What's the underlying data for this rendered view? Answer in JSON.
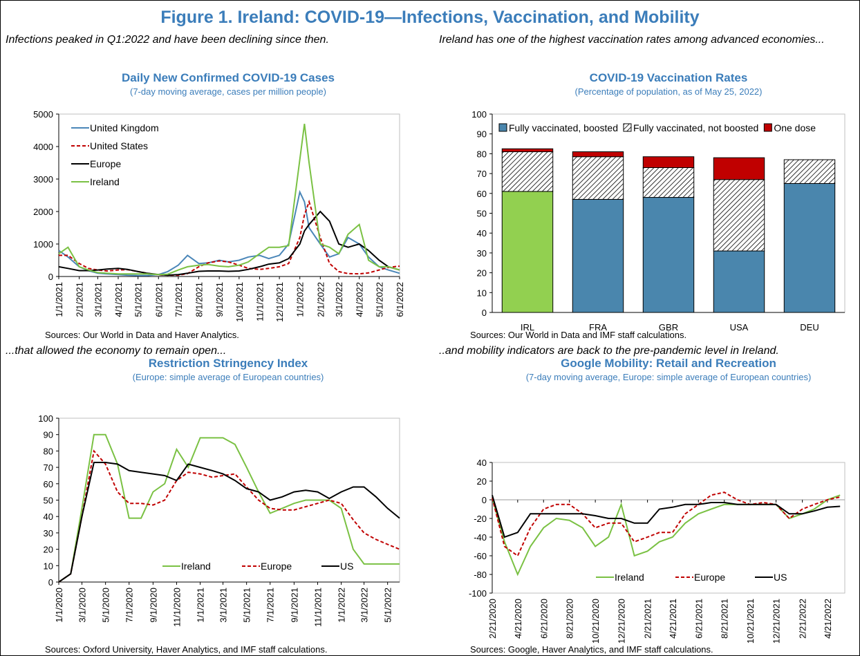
{
  "title": "Figure 1. Ireland: COVID-19—Infections, Vaccination, and Mobility",
  "chart_data": [
    {
      "type": "line",
      "caption": "Infections peaked in Q1:2022 and have been declining since then.",
      "title": "Daily New Confirmed COVID-19 Cases",
      "subtitle": "(7-day moving average, cases per million people)",
      "source": "Sources: Our World in Data and Haver Analytics.",
      "x": [
        "1/1/2021",
        "1/15/2021",
        "2/1/2021",
        "2/15/2021",
        "3/1/2021",
        "3/15/2021",
        "4/1/2021",
        "4/15/2021",
        "5/1/2021",
        "5/15/2021",
        "6/1/2021",
        "6/15/2021",
        "7/1/2021",
        "7/15/2021",
        "8/1/2021",
        "8/15/2021",
        "9/1/2021",
        "9/15/2021",
        "10/1/2021",
        "10/15/2021",
        "11/1/2021",
        "11/15/2021",
        "12/1/2021",
        "12/15/2021",
        "1/1/2022",
        "1/8/2022",
        "1/15/2022",
        "2/1/2022",
        "2/15/2022",
        "3/1/2022",
        "3/15/2022",
        "4/1/2022",
        "4/15/2022",
        "5/1/2022",
        "5/15/2022",
        "6/1/2022"
      ],
      "xlim": [
        "1/1/2021",
        "6/1/2022"
      ],
      "xticks": [
        "1/1/2021",
        "2/1/2021",
        "3/1/2021",
        "4/1/2021",
        "5/1/2021",
        "6/1/2021",
        "7/1/2021",
        "8/1/2021",
        "9/1/2021",
        "10/1/2021",
        "11/1/2021",
        "12/1/2021",
        "1/1/2022",
        "2/1/2022",
        "3/1/2022",
        "4/1/2022",
        "5/1/2022",
        "6/1/2022"
      ],
      "ylim": [
        0,
        5000
      ],
      "yticks": [
        0,
        1000,
        2000,
        3000,
        4000,
        5000
      ],
      "legend": "upper left",
      "series": [
        {
          "name": "United Kingdom",
          "color": "#4a86b8",
          "values": [
            800,
            600,
            300,
            180,
            100,
            80,
            60,
            40,
            30,
            30,
            60,
            150,
            350,
            650,
            400,
            420,
            500,
            450,
            500,
            600,
            650,
            550,
            650,
            1000,
            2600,
            2300,
            1500,
            1000,
            600,
            700,
            1200,
            1000,
            600,
            300,
            200,
            100
          ]
        },
        {
          "name": "United States",
          "color": "#c00000",
          "dash": true,
          "values": [
            650,
            650,
            400,
            250,
            200,
            170,
            200,
            210,
            150,
            100,
            50,
            40,
            40,
            90,
            300,
            420,
            480,
            450,
            350,
            250,
            220,
            250,
            300,
            400,
            1200,
            1900,
            2300,
            1200,
            400,
            150,
            90,
            80,
            110,
            200,
            280,
            320
          ]
        },
        {
          "name": "Europe",
          "color": "#000000",
          "values": [
            300,
            250,
            180,
            180,
            200,
            230,
            250,
            220,
            150,
            100,
            60,
            40,
            60,
            100,
            160,
            170,
            170,
            160,
            170,
            220,
            300,
            380,
            420,
            550,
            1000,
            1400,
            1600,
            2000,
            1700,
            1000,
            900,
            1000,
            800,
            500,
            300,
            200
          ]
        },
        {
          "name": "Ireland",
          "color": "#7ac143",
          "values": [
            700,
            900,
            300,
            200,
            120,
            100,
            80,
            80,
            80,
            80,
            60,
            70,
            200,
            300,
            350,
            370,
            320,
            300,
            350,
            450,
            700,
            900,
            900,
            950,
            3600,
            4700,
            3500,
            1000,
            900,
            700,
            1300,
            1600,
            500,
            300,
            300,
            200
          ]
        }
      ]
    },
    {
      "type": "stacked_bar",
      "caption": "Ireland has one of the highest vaccination rates among advanced economies...",
      "title": "COVID-19 Vaccination Rates",
      "subtitle": "(Percentage of population, as of May 25, 2022)",
      "source": "Sources: Our World in Data and IMF staff calculations.",
      "categories": [
        "IRL",
        "FRA",
        "GBR",
        "USA",
        "DEU"
      ],
      "ylim": [
        0,
        100
      ],
      "yticks": [
        0,
        10,
        20,
        30,
        40,
        50,
        60,
        70,
        80,
        90,
        100
      ],
      "legend": "upper center",
      "series": [
        {
          "name": "Fully vaccinated, boosted",
          "color": "#4a86ad",
          "colors": [
            "#92d050",
            "#4a86ad",
            "#4a86ad",
            "#4a86ad",
            "#4a86ad"
          ],
          "values": [
            61,
            57,
            58,
            31,
            65
          ]
        },
        {
          "name": "Fully vaccinated, not boosted",
          "color": "#000000",
          "hatch": true,
          "values": [
            20,
            21.5,
            15,
            36,
            12
          ]
        },
        {
          "name": "One dose",
          "color": "#c00000",
          "values": [
            1.5,
            2.5,
            5.5,
            11,
            0
          ]
        }
      ]
    },
    {
      "type": "line",
      "caption": "...that allowed the economy to remain open...",
      "title": "Restriction Stringency Index",
      "subtitle": "(Europe: simple average of European countries)",
      "source": "Sources: Oxford University, Haver Analytics, and IMF staff calculations.",
      "x": [
        "1/1/2020",
        "2/1/2020",
        "3/1/2020",
        "4/1/2020",
        "5/1/2020",
        "6/1/2020",
        "7/1/2020",
        "8/1/2020",
        "9/1/2020",
        "10/1/2020",
        "11/1/2020",
        "12/1/2020",
        "1/1/2021",
        "2/1/2021",
        "3/1/2021",
        "4/1/2021",
        "5/1/2021",
        "6/1/2021",
        "7/1/2021",
        "8/1/2021",
        "9/1/2021",
        "10/1/2021",
        "11/1/2021",
        "12/1/2021",
        "1/1/2022",
        "2/1/2022",
        "3/1/2022",
        "4/1/2022",
        "5/1/2022",
        "6/1/2022"
      ],
      "xlim": [
        "1/1/2020",
        "6/1/2022"
      ],
      "xticks": [
        "1/1/2020",
        "3/1/2020",
        "5/1/2020",
        "7/1/2020",
        "9/1/2020",
        "11/1/2020",
        "1/1/2021",
        "3/1/2021",
        "5/1/2021",
        "7/1/2021",
        "9/1/2021",
        "11/1/2021",
        "1/1/2022",
        "3/1/2022",
        "5/1/2022"
      ],
      "ylim": [
        0,
        100
      ],
      "yticks": [
        0,
        10,
        20,
        30,
        40,
        50,
        60,
        70,
        80,
        90,
        100
      ],
      "legend": "lower center",
      "series": [
        {
          "name": "Ireland",
          "color": "#7ac143",
          "values": [
            0,
            5,
            45,
            90,
            90,
            72,
            39,
            39,
            55,
            60,
            81,
            70,
            88,
            88,
            88,
            84,
            70,
            55,
            42,
            45,
            48,
            50,
            50,
            50,
            45,
            20,
            11,
            11,
            11,
            11
          ]
        },
        {
          "name": "Europe",
          "color": "#c00000",
          "dash": true,
          "values": [
            0,
            5,
            40,
            80,
            72,
            55,
            48,
            48,
            47,
            50,
            62,
            67,
            66,
            64,
            65,
            66,
            58,
            50,
            45,
            44,
            44,
            46,
            48,
            50,
            48,
            38,
            30,
            26,
            23,
            20
          ]
        },
        {
          "name": "US",
          "color": "#000000",
          "values": [
            0,
            5,
            40,
            73,
            73,
            72,
            68,
            67,
            66,
            65,
            62,
            72,
            70,
            68,
            66,
            62,
            57,
            55,
            50,
            52,
            55,
            56,
            55,
            51,
            55,
            58,
            58,
            52,
            45,
            39
          ]
        }
      ]
    },
    {
      "type": "line",
      "caption": "..and mobility indicators are back to the pre-pandemic level in Ireland.",
      "title": "Google Mobility: Retail and Recreation",
      "subtitle": "(7-day moving average, Europe: simple average of European countries)",
      "source": "Sources: Google, Haver Analytics, and IMF staff calculations.",
      "x": [
        "2/21/2020",
        "3/21/2020",
        "4/21/2020",
        "5/21/2020",
        "6/21/2020",
        "7/21/2020",
        "8/21/2020",
        "9/21/2020",
        "10/21/2020",
        "11/21/2020",
        "12/21/2020",
        "1/21/2021",
        "2/21/2021",
        "3/21/2021",
        "4/21/2021",
        "5/21/2021",
        "6/21/2021",
        "7/21/2021",
        "8/21/2021",
        "9/21/2021",
        "10/21/2021",
        "11/21/2021",
        "12/21/2021",
        "1/21/2022",
        "2/21/2022",
        "3/21/2022",
        "4/21/2022",
        "5/21/2022"
      ],
      "xlim": [
        "2/21/2020",
        "6/1/2022"
      ],
      "xticks": [
        "2/21/2020",
        "4/21/2020",
        "6/21/2020",
        "8/21/2020",
        "10/21/2020",
        "12/21/2020",
        "2/21/2021",
        "4/21/2021",
        "6/21/2021",
        "8/21/2021",
        "10/21/2021",
        "12/21/2021",
        "2/21/2022",
        "4/21/2022"
      ],
      "ylim": [
        -100,
        40
      ],
      "yticks": [
        -100,
        -80,
        -60,
        -40,
        -20,
        0,
        20,
        40
      ],
      "legend": "lower center",
      "series": [
        {
          "name": "Ireland",
          "color": "#7ac143",
          "values": [
            2,
            -45,
            -80,
            -50,
            -30,
            -20,
            -22,
            -30,
            -50,
            -40,
            -5,
            -60,
            -55,
            -45,
            -40,
            -25,
            -15,
            -10,
            -5,
            -5,
            -5,
            -5,
            -5,
            -20,
            -15,
            -10,
            0,
            5
          ]
        },
        {
          "name": "Europe",
          "color": "#c00000",
          "dash": true,
          "values": [
            2,
            -50,
            -60,
            -30,
            -10,
            -5,
            -5,
            -15,
            -30,
            -25,
            -25,
            -45,
            -40,
            -35,
            -35,
            -15,
            -5,
            5,
            8,
            0,
            -5,
            -3,
            -5,
            -20,
            -10,
            -5,
            0,
            3
          ]
        },
        {
          "name": "US",
          "color": "#000000",
          "values": [
            5,
            -40,
            -35,
            -15,
            -15,
            -15,
            -15,
            -15,
            -17,
            -20,
            -20,
            -25,
            -25,
            -10,
            -8,
            -5,
            -5,
            -3,
            -3,
            -5,
            -5,
            -5,
            -5,
            -15,
            -15,
            -12,
            -8,
            -7
          ]
        }
      ]
    }
  ]
}
